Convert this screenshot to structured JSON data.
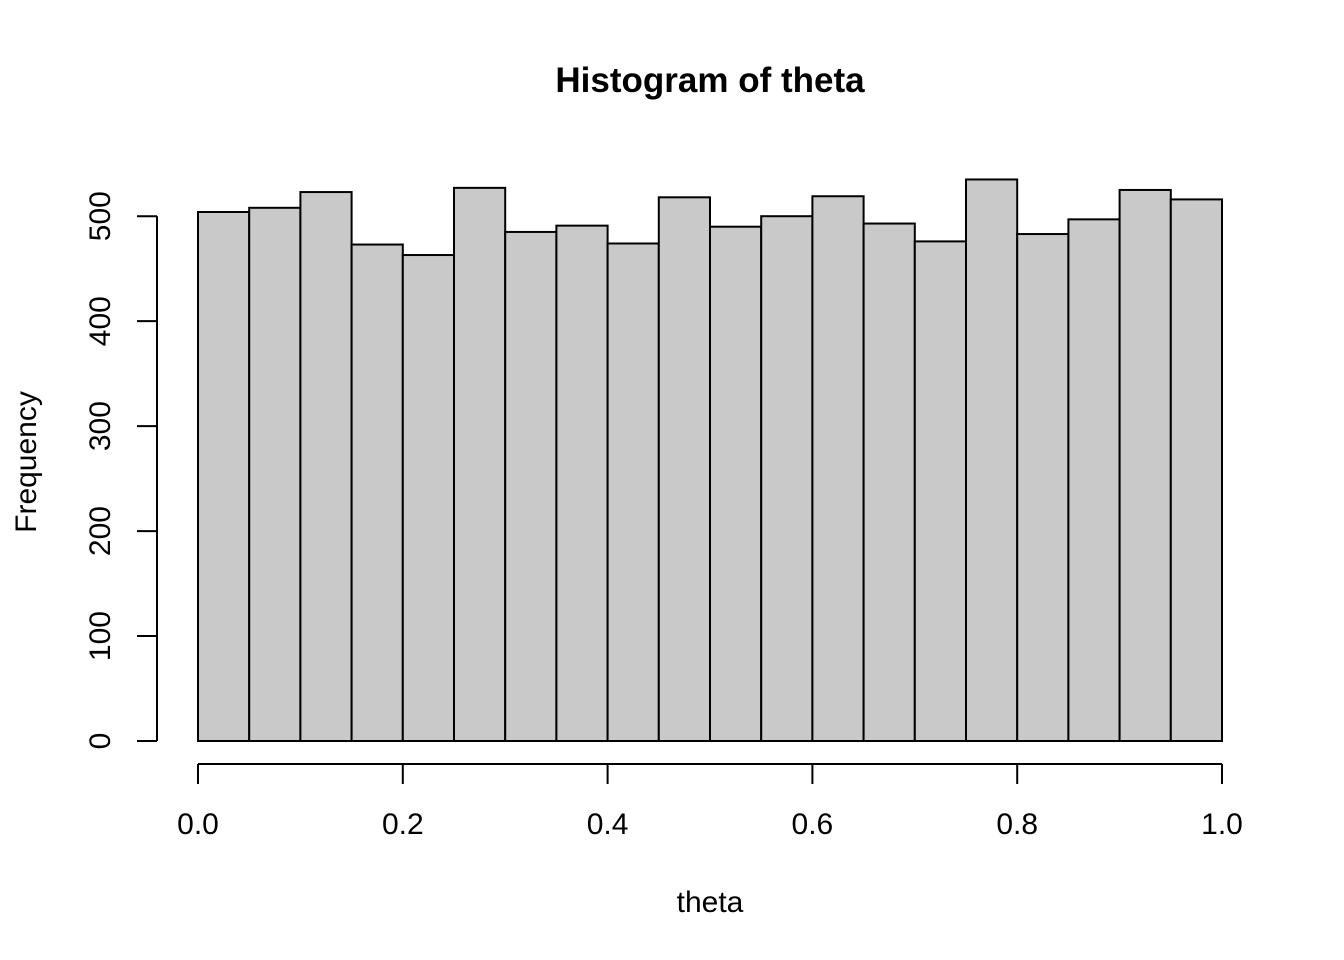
{
  "chart_data": {
    "type": "bar",
    "title": "Histogram of theta",
    "xlabel": "theta",
    "ylabel": "Frequency",
    "bin_edges": [
      0.0,
      0.05,
      0.1,
      0.15,
      0.2,
      0.25,
      0.3,
      0.35,
      0.4,
      0.45,
      0.5,
      0.55,
      0.6,
      0.65,
      0.7,
      0.75,
      0.8,
      0.85,
      0.9,
      0.95,
      1.0
    ],
    "values": [
      504,
      508,
      523,
      473,
      463,
      527,
      485,
      491,
      474,
      518,
      490,
      500,
      519,
      493,
      476,
      535,
      483,
      497,
      525,
      516
    ],
    "xlim": [
      0.0,
      1.0
    ],
    "ylim": [
      0,
      500
    ],
    "x_ticks": [
      "0.0",
      "0.2",
      "0.4",
      "0.6",
      "0.8",
      "1.0"
    ],
    "x_tick_values": [
      0.0,
      0.2,
      0.4,
      0.6,
      0.8,
      1.0
    ],
    "y_ticks": [
      "0",
      "100",
      "200",
      "300",
      "400",
      "500"
    ],
    "y_tick_values": [
      0,
      100,
      200,
      300,
      400,
      500
    ],
    "bar_color": "#c9c9c9",
    "grid": false
  }
}
